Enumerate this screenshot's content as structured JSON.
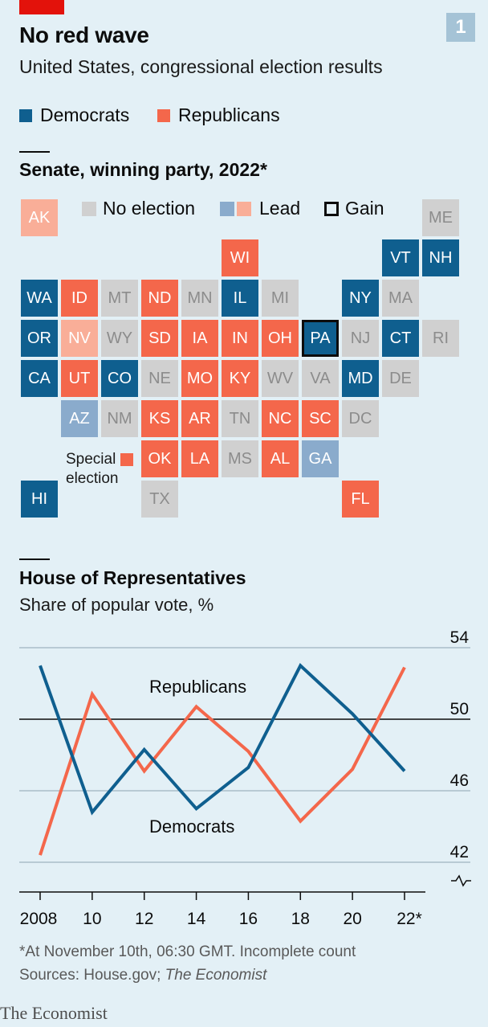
{
  "header": {
    "title": "No red wave",
    "subtitle": "United States, congressional election results",
    "badge": "1"
  },
  "legend": [
    {
      "label": "Democrats",
      "color": "#0f5f8f"
    },
    {
      "label": "Republicans",
      "color": "#f4674b"
    }
  ],
  "colors": {
    "dem": "#0f5f8f",
    "rep": "#f4674b",
    "dem_lead": "#8aabcc",
    "rep_lead": "#f9ae98",
    "no_election": "#d0d0d0",
    "background": "#e3f0f6"
  },
  "senate": {
    "title": "Senate, winning party, 2022*",
    "legend": {
      "no_election": "No election",
      "lead": "Lead",
      "gain": "Gain"
    },
    "special_label_1": "Special",
    "special_label_2": "election",
    "states": [
      {
        "abbr": "AK",
        "status": "rep-lead",
        "col": 0,
        "row": 0
      },
      {
        "abbr": "ME",
        "status": "none",
        "col": 10,
        "row": 0
      },
      {
        "abbr": "WI",
        "status": "rep",
        "col": 5,
        "row": 1
      },
      {
        "abbr": "VT",
        "status": "dem",
        "col": 9,
        "row": 1
      },
      {
        "abbr": "NH",
        "status": "dem",
        "col": 10,
        "row": 1
      },
      {
        "abbr": "WA",
        "status": "dem",
        "col": 0,
        "row": 2
      },
      {
        "abbr": "ID",
        "status": "rep",
        "col": 1,
        "row": 2
      },
      {
        "abbr": "MT",
        "status": "none",
        "col": 2,
        "row": 2
      },
      {
        "abbr": "ND",
        "status": "rep",
        "col": 3,
        "row": 2
      },
      {
        "abbr": "MN",
        "status": "none",
        "col": 4,
        "row": 2
      },
      {
        "abbr": "IL",
        "status": "dem",
        "col": 5,
        "row": 2
      },
      {
        "abbr": "MI",
        "status": "none",
        "col": 6,
        "row": 2
      },
      {
        "abbr": "NY",
        "status": "dem",
        "col": 8,
        "row": 2
      },
      {
        "abbr": "MA",
        "status": "none",
        "col": 9,
        "row": 2
      },
      {
        "abbr": "OR",
        "status": "dem",
        "col": 0,
        "row": 3
      },
      {
        "abbr": "NV",
        "status": "rep-lead",
        "col": 1,
        "row": 3
      },
      {
        "abbr": "WY",
        "status": "none",
        "col": 2,
        "row": 3
      },
      {
        "abbr": "SD",
        "status": "rep",
        "col": 3,
        "row": 3
      },
      {
        "abbr": "IA",
        "status": "rep",
        "col": 4,
        "row": 3
      },
      {
        "abbr": "IN",
        "status": "rep",
        "col": 5,
        "row": 3
      },
      {
        "abbr": "OH",
        "status": "rep",
        "col": 6,
        "row": 3
      },
      {
        "abbr": "PA",
        "status": "dem-gain",
        "col": 7,
        "row": 3
      },
      {
        "abbr": "NJ",
        "status": "none",
        "col": 8,
        "row": 3
      },
      {
        "abbr": "CT",
        "status": "dem",
        "col": 9,
        "row": 3
      },
      {
        "abbr": "RI",
        "status": "none",
        "col": 10,
        "row": 3
      },
      {
        "abbr": "CA",
        "status": "dem",
        "col": 0,
        "row": 4
      },
      {
        "abbr": "UT",
        "status": "rep",
        "col": 1,
        "row": 4
      },
      {
        "abbr": "CO",
        "status": "dem",
        "col": 2,
        "row": 4
      },
      {
        "abbr": "NE",
        "status": "none",
        "col": 3,
        "row": 4
      },
      {
        "abbr": "MO",
        "status": "rep",
        "col": 4,
        "row": 4
      },
      {
        "abbr": "KY",
        "status": "rep",
        "col": 5,
        "row": 4
      },
      {
        "abbr": "WV",
        "status": "none",
        "col": 6,
        "row": 4
      },
      {
        "abbr": "VA",
        "status": "none",
        "col": 7,
        "row": 4
      },
      {
        "abbr": "MD",
        "status": "dem",
        "col": 8,
        "row": 4
      },
      {
        "abbr": "DE",
        "status": "none",
        "col": 9,
        "row": 4
      },
      {
        "abbr": "AZ",
        "status": "dem-lead",
        "col": 1,
        "row": 5
      },
      {
        "abbr": "NM",
        "status": "none",
        "col": 2,
        "row": 5
      },
      {
        "abbr": "KS",
        "status": "rep",
        "col": 3,
        "row": 5
      },
      {
        "abbr": "AR",
        "status": "rep",
        "col": 4,
        "row": 5
      },
      {
        "abbr": "TN",
        "status": "none",
        "col": 5,
        "row": 5
      },
      {
        "abbr": "NC",
        "status": "rep",
        "col": 6,
        "row": 5
      },
      {
        "abbr": "SC",
        "status": "rep",
        "col": 7,
        "row": 5
      },
      {
        "abbr": "DC",
        "status": "none",
        "col": 8,
        "row": 5
      },
      {
        "abbr": "OK",
        "status": "rep",
        "col": 3,
        "row": 6
      },
      {
        "abbr": "LA",
        "status": "rep",
        "col": 4,
        "row": 6
      },
      {
        "abbr": "MS",
        "status": "none",
        "col": 5,
        "row": 6
      },
      {
        "abbr": "AL",
        "status": "rep",
        "col": 6,
        "row": 6
      },
      {
        "abbr": "GA",
        "status": "dem-lead",
        "col": 7,
        "row": 6
      },
      {
        "abbr": "HI",
        "status": "dem",
        "col": 0,
        "row": 7
      },
      {
        "abbr": "TX",
        "status": "none",
        "col": 3,
        "row": 7
      },
      {
        "abbr": "FL",
        "status": "rep",
        "col": 8,
        "row": 7
      }
    ]
  },
  "house": {
    "title": "House of Representatives",
    "subtitle": "Share of popular vote, %"
  },
  "chart_data": {
    "type": "line",
    "title": "House of Representatives",
    "subtitle": "Share of popular vote, %",
    "x": [
      2008,
      2010,
      2012,
      2014,
      2016,
      2018,
      2020,
      2022
    ],
    "x_tick_labels": [
      "2008",
      "10",
      "12",
      "14",
      "16",
      "18",
      "20",
      "22*"
    ],
    "ylim": [
      42,
      54
    ],
    "y_ticks": [
      42,
      46,
      50,
      54
    ],
    "y_tick_labels": [
      "42",
      "46",
      "50",
      "54"
    ],
    "series": [
      {
        "name": "Republicans",
        "color": "#f4674b",
        "values": [
          42.4,
          51.4,
          47.1,
          50.7,
          48.2,
          44.3,
          47.2,
          52.9
        ]
      },
      {
        "name": "Democrats",
        "color": "#0f5f8f",
        "values": [
          53.0,
          44.8,
          48.3,
          45.0,
          47.3,
          53.0,
          50.3,
          47.1
        ]
      }
    ],
    "grid": true,
    "broken_axis": true
  },
  "footnote": {
    "line1": "*At November 10th, 06:30 GMT. Incomplete count",
    "sources_prefix": "Sources: House.gov; ",
    "sources_italic": "The Economist"
  },
  "brand": "The Economist"
}
